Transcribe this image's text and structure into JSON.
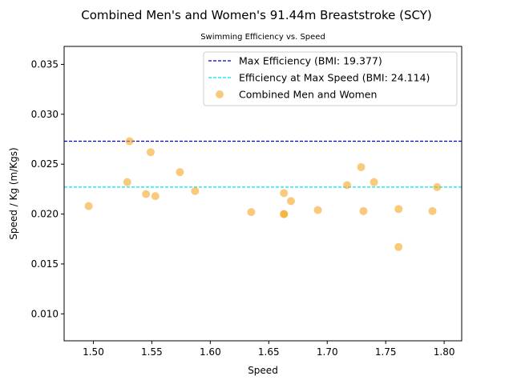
{
  "chart_data": {
    "type": "scatter",
    "title": "Combined Men's and Women's 91.44m Breaststroke (SCY)",
    "subtitle": "Swimming Efficiency vs. Speed",
    "xlabel": "Speed",
    "ylabel": "Speed / Kg (m/Kgs)",
    "xlim": [
      1.475,
      1.815
    ],
    "ylim": [
      0.0073,
      0.0368
    ],
    "xticks": [
      "1.50",
      "1.55",
      "1.60",
      "1.65",
      "1.70",
      "1.75",
      "1.80"
    ],
    "xtick_values": [
      1.5,
      1.55,
      1.6,
      1.65,
      1.7,
      1.75,
      1.8
    ],
    "yticks": [
      "0.010",
      "0.015",
      "0.020",
      "0.025",
      "0.030",
      "0.035"
    ],
    "ytick_values": [
      0.01,
      0.015,
      0.02,
      0.025,
      0.03,
      0.035
    ],
    "grid": false,
    "legend_position": "top-right",
    "reference_lines": [
      {
        "name": "Max Efficiency (BMI: 19.377)",
        "y": 0.0273,
        "color": "#0000cc",
        "style": "dashed"
      },
      {
        "name": "Efficiency at Max Speed (BMI: 24.114)",
        "y": 0.0227,
        "color": "#00e5e5",
        "style": "dashed"
      }
    ],
    "series": [
      {
        "name": "Combined Men and Women",
        "color": "#f5a623",
        "points": [
          {
            "x": 1.496,
            "y": 0.0208
          },
          {
            "x": 1.529,
            "y": 0.0232
          },
          {
            "x": 1.531,
            "y": 0.0273
          },
          {
            "x": 1.545,
            "y": 0.022
          },
          {
            "x": 1.549,
            "y": 0.0262
          },
          {
            "x": 1.553,
            "y": 0.0218
          },
          {
            "x": 1.574,
            "y": 0.0242
          },
          {
            "x": 1.587,
            "y": 0.0223
          },
          {
            "x": 1.635,
            "y": 0.0202
          },
          {
            "x": 1.663,
            "y": 0.02
          },
          {
            "x": 1.663,
            "y": 0.0221
          },
          {
            "x": 1.663,
            "y": 0.02
          },
          {
            "x": 1.669,
            "y": 0.0213
          },
          {
            "x": 1.692,
            "y": 0.0204
          },
          {
            "x": 1.717,
            "y": 0.0229
          },
          {
            "x": 1.729,
            "y": 0.0247
          },
          {
            "x": 1.731,
            "y": 0.0203
          },
          {
            "x": 1.74,
            "y": 0.0232
          },
          {
            "x": 1.761,
            "y": 0.0205
          },
          {
            "x": 1.761,
            "y": 0.0167
          },
          {
            "x": 1.79,
            "y": 0.0203
          },
          {
            "x": 1.794,
            "y": 0.0227
          }
        ]
      }
    ]
  }
}
